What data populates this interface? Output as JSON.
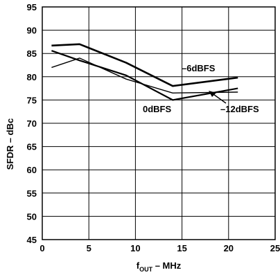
{
  "chart_data": {
    "type": "line",
    "xlabel_main": "f",
    "xlabel_sub": "OUT",
    "xlabel_rest": " – MHz",
    "ylabel": "SFDR – dBc",
    "xlim": [
      0,
      25
    ],
    "ylim": [
      45,
      95
    ],
    "xticks": [
      "0",
      "5",
      "10",
      "15",
      "20",
      "25"
    ],
    "yticks": [
      "95",
      "90",
      "85",
      "80",
      "75",
      "70",
      "65",
      "60",
      "55",
      "50",
      "45"
    ],
    "grid": true,
    "series": [
      {
        "name": "–6dBFS",
        "x": [
          1,
          4,
          9,
          14,
          21
        ],
        "y": [
          86.7,
          87.0,
          83.0,
          78.0,
          79.8
        ]
      },
      {
        "name": "0dBFS",
        "x": [
          1,
          4,
          9,
          14,
          21
        ],
        "y": [
          85.6,
          83.5,
          80.3,
          75.0,
          77.5
        ]
      },
      {
        "name": "–12dBFS",
        "x": [
          1,
          4,
          9,
          14,
          21
        ],
        "y": [
          82.0,
          84.0,
          79.5,
          76.5,
          76.7
        ]
      }
    ],
    "annotations": [
      {
        "text": "–6dBFS"
      },
      {
        "text": "0dBFS"
      },
      {
        "text": "–12dBFS"
      }
    ]
  }
}
